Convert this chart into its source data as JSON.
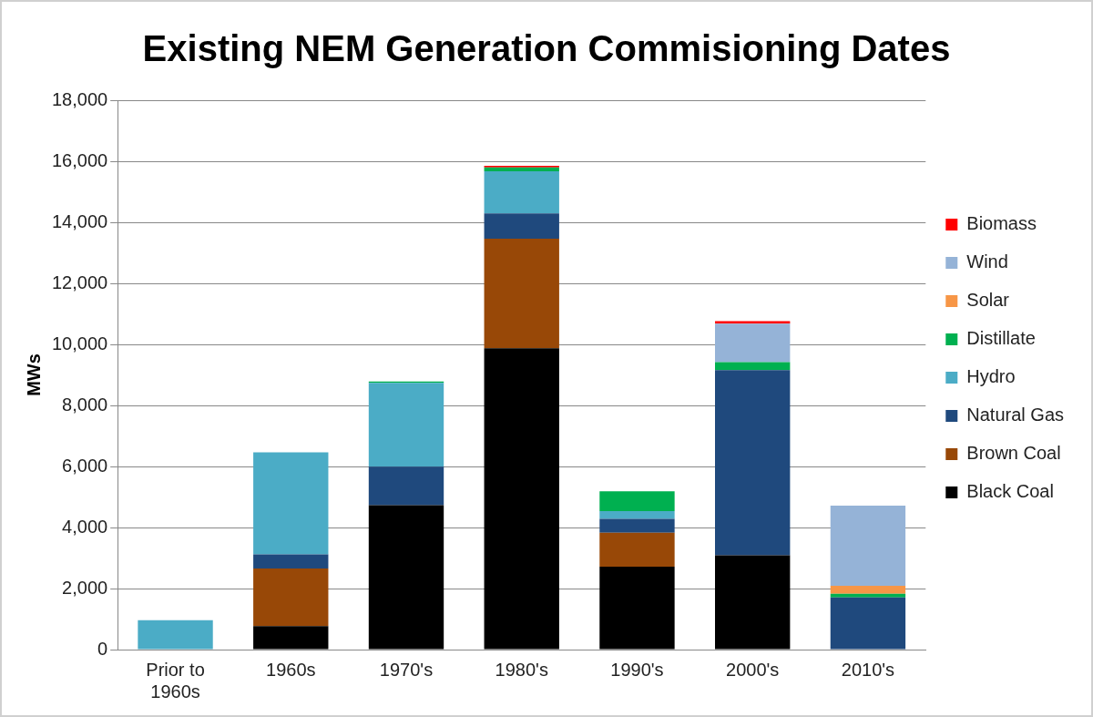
{
  "chart_data": {
    "type": "bar",
    "title": "Existing NEM Generation Commisioning Dates",
    "ylabel": "MWs",
    "categories": [
      "Prior to 1960s",
      "1960s",
      "1970's",
      "1980's",
      "1990's",
      "2000's",
      "2010's"
    ],
    "stacked": true,
    "grid": "y",
    "legend": "right",
    "ylim": [
      0,
      18000
    ],
    "yticks": [
      {
        "value": 0,
        "label": "0"
      },
      {
        "value": 2000,
        "label": "2,000"
      },
      {
        "value": 4000,
        "label": "4,000"
      },
      {
        "value": 6000,
        "label": "6,000"
      },
      {
        "value": 8000,
        "label": "8,000"
      },
      {
        "value": 10000,
        "label": "10,000"
      },
      {
        "value": 12000,
        "label": "12,000"
      },
      {
        "value": 14000,
        "label": "14,000"
      },
      {
        "value": 16000,
        "label": "16,000"
      },
      {
        "value": 18000,
        "label": "18,000"
      }
    ],
    "series": [
      {
        "name": "Black Coal",
        "color": "#000000",
        "values": [
          0,
          770,
          4730,
          9870,
          2720,
          3090,
          0
        ]
      },
      {
        "name": "Brown Coal",
        "color": "#984807",
        "values": [
          0,
          1890,
          0,
          3590,
          1110,
          0,
          0
        ]
      },
      {
        "name": "Natural Gas",
        "color": "#1f497d",
        "values": [
          0,
          460,
          1260,
          830,
          450,
          6070,
          1710
        ]
      },
      {
        "name": "Hydro",
        "color": "#4bacc6",
        "values": [
          960,
          3340,
          2750,
          1380,
          260,
          0,
          0
        ]
      },
      {
        "name": "Distillate",
        "color": "#00b050",
        "values": [
          0,
          0,
          40,
          130,
          650,
          260,
          120
        ]
      },
      {
        "name": "Solar",
        "color": "#f79646",
        "values": [
          0,
          0,
          0,
          0,
          0,
          0,
          260
        ]
      },
      {
        "name": "Wind",
        "color": "#95b3d7",
        "values": [
          0,
          0,
          0,
          0,
          0,
          1260,
          2630
        ]
      },
      {
        "name": "Biomass",
        "color": "#ff0000",
        "values": [
          0,
          0,
          0,
          50,
          0,
          80,
          0
        ]
      }
    ]
  }
}
